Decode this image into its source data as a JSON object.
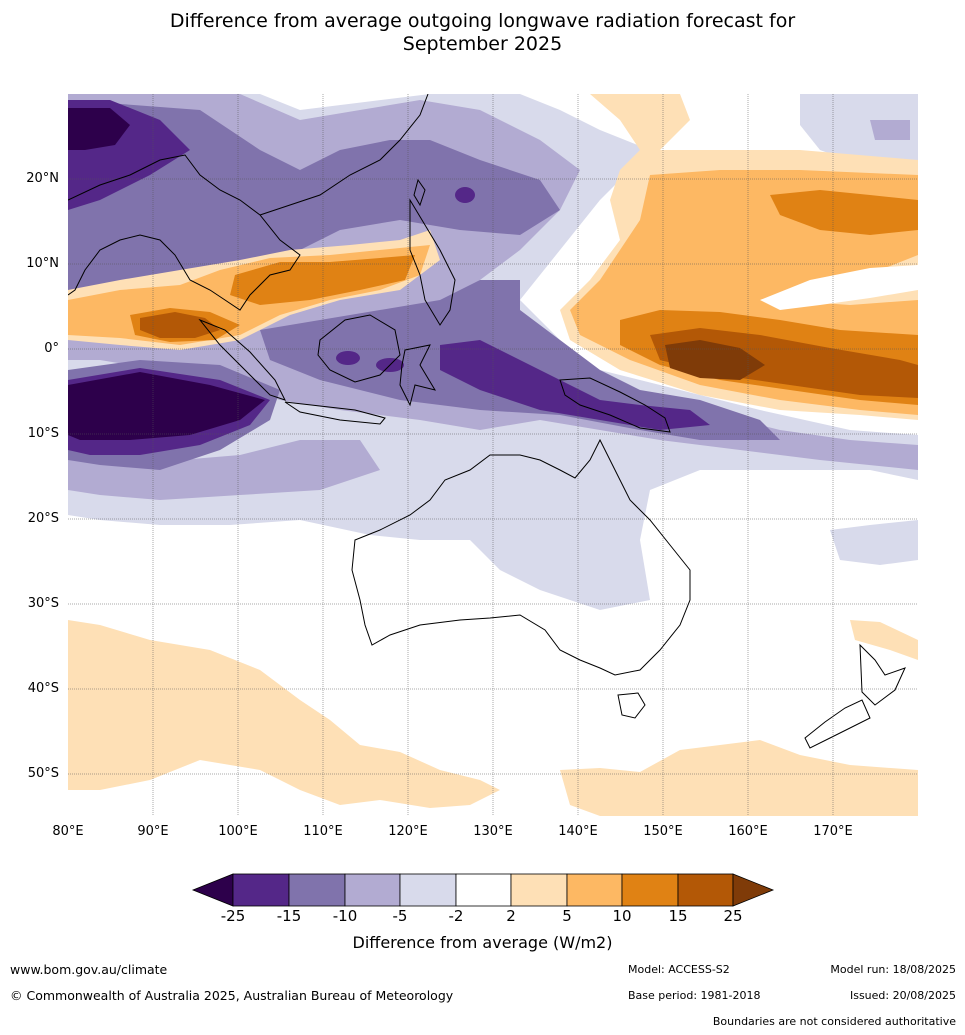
{
  "title": {
    "line1": "Difference from average outgoing longwave radiation forecast for",
    "line2": "September 2025"
  },
  "map": {
    "latitude_labels": [
      "20°N",
      "10°N",
      "0°",
      "10°S",
      "20°S",
      "30°S",
      "40°S",
      "50°S"
    ],
    "longitude_labels": [
      "80°E",
      "90°E",
      "100°E",
      "110°E",
      "120°E",
      "130°E",
      "140°E",
      "150°E",
      "160°E",
      "170°E"
    ]
  },
  "colorbar": {
    "ticks": [
      "-25",
      "-15",
      "-10",
      "-5",
      "-2",
      "2",
      "5",
      "10",
      "15",
      "25"
    ],
    "colors": [
      "#2d004b",
      "#542788",
      "#8073ac",
      "#b2abd2",
      "#d8daeb",
      "#ffffff",
      "#fee0b6",
      "#fdb863",
      "#e08214",
      "#b35806",
      "#7f3b08"
    ],
    "label": "Difference from average (W/m2)"
  },
  "footer": {
    "website": "www.bom.gov.au/climate",
    "copyright": "© Commonwealth of Australia 2025, Australian Bureau of Meteorology",
    "model": "Model: ACCESS-S2",
    "base_period": "Base period: 1981-2018",
    "model_run": "Model run: 18/08/2025",
    "issued": "Issued: 20/08/2025",
    "disclaimer": "Boundaries are not considered authoritative"
  }
}
